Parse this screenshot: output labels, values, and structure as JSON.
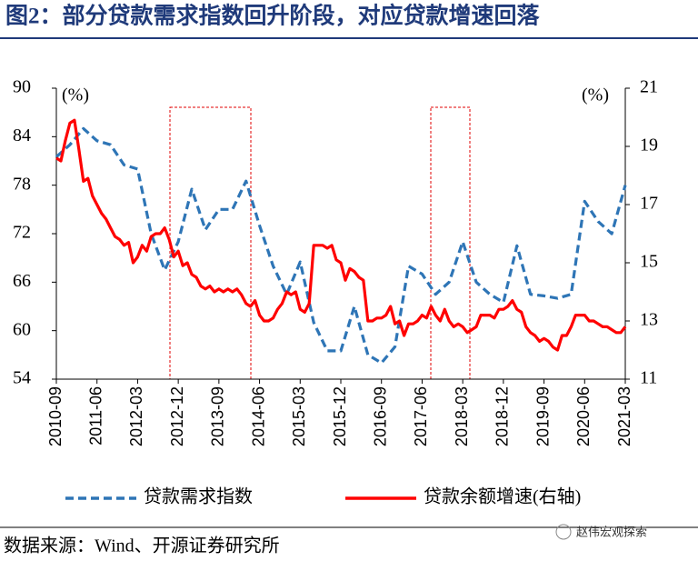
{
  "chart_data": {
    "type": "line",
    "title": "图2：部分贷款需求指数回升阶段，对应贷款增速回落",
    "y_label": "(%)",
    "y2_label": "(%)",
    "source": "数据来源：Wind、开源证券研究所",
    "watermark": "赵伟宏观探索",
    "x": [
      "2010-09",
      "2010-10",
      "2010-11",
      "2010-12",
      "2011-01",
      "2011-02",
      "2011-03",
      "2011-04",
      "2011-05",
      "2011-06",
      "2011-07",
      "2011-08",
      "2011-09",
      "2011-10",
      "2011-11",
      "2011-12",
      "2012-01",
      "2012-02",
      "2012-03",
      "2012-04",
      "2012-05",
      "2012-06",
      "2012-07",
      "2012-08",
      "2012-09",
      "2012-10",
      "2012-11",
      "2012-12",
      "2013-01",
      "2013-02",
      "2013-03",
      "2013-04",
      "2013-05",
      "2013-06",
      "2013-07",
      "2013-08",
      "2013-09",
      "2013-10",
      "2013-11",
      "2013-12",
      "2014-01",
      "2014-02",
      "2014-03",
      "2014-04",
      "2014-05",
      "2014-06",
      "2014-07",
      "2014-08",
      "2014-09",
      "2014-10",
      "2014-11",
      "2014-12",
      "2015-01",
      "2015-02",
      "2015-03",
      "2015-04",
      "2015-05",
      "2015-06",
      "2015-07",
      "2015-08",
      "2015-09",
      "2015-10",
      "2015-11",
      "2015-12",
      "2016-01",
      "2016-02",
      "2016-03",
      "2016-04",
      "2016-05",
      "2016-06",
      "2016-07",
      "2016-08",
      "2016-09",
      "2016-10",
      "2016-11",
      "2016-12",
      "2017-01",
      "2017-02",
      "2017-03",
      "2017-04",
      "2017-05",
      "2017-06",
      "2017-07",
      "2017-08",
      "2017-09",
      "2017-10",
      "2017-11",
      "2017-12",
      "2018-01",
      "2018-02",
      "2018-03",
      "2018-04",
      "2018-05",
      "2018-06",
      "2018-07",
      "2018-08",
      "2018-09",
      "2018-10",
      "2018-11",
      "2018-12",
      "2019-01",
      "2019-02",
      "2019-03",
      "2019-04",
      "2019-05",
      "2019-06",
      "2019-07",
      "2019-08",
      "2019-09",
      "2019-10",
      "2019-11",
      "2019-12",
      "2020-01",
      "2020-02",
      "2020-03",
      "2020-04",
      "2020-05",
      "2020-06",
      "2020-07",
      "2020-08",
      "2020-09",
      "2020-10",
      "2020-11",
      "2020-12",
      "2021-01",
      "2021-02",
      "2021-03"
    ],
    "xticks": [
      "2010-09",
      "2011-06",
      "2012-03",
      "2012-12",
      "2013-09",
      "2014-06",
      "2015-03",
      "2015-12",
      "2016-09",
      "2017-06",
      "2018-03",
      "2018-12",
      "2019-09",
      "2020-06",
      "2021-03"
    ],
    "ylim": [
      54,
      90
    ],
    "yticks": [
      54,
      60,
      66,
      72,
      78,
      84,
      90
    ],
    "y2lim": [
      11,
      21
    ],
    "y2ticks": [
      11,
      13,
      15,
      17,
      19,
      21
    ],
    "series": [
      {
        "name": "贷款需求指数",
        "color": "#2e75b6",
        "dashed": true,
        "x": [
          "2010-09",
          "2010-12",
          "2011-03",
          "2011-06",
          "2011-09",
          "2011-12",
          "2012-03",
          "2012-06",
          "2012-09",
          "2012-12",
          "2013-03",
          "2013-06",
          "2013-09",
          "2013-12",
          "2014-03",
          "2014-06",
          "2014-09",
          "2014-12",
          "2015-03",
          "2015-06",
          "2015-09",
          "2015-12",
          "2016-03",
          "2016-06",
          "2016-09",
          "2016-12",
          "2017-03",
          "2017-06",
          "2017-09",
          "2017-12",
          "2018-03",
          "2018-06",
          "2018-09",
          "2018-12",
          "2019-03",
          "2019-06",
          "2019-09",
          "2019-12",
          "2020-03",
          "2020-06",
          "2020-09",
          "2020-12",
          "2021-03"
        ],
        "values": [
          81.5,
          83,
          85,
          83.5,
          83,
          80.5,
          80,
          72,
          67.5,
          71,
          77.5,
          72.5,
          75,
          75,
          78.5,
          73,
          68,
          64.5,
          68.5,
          61,
          57.5,
          57.5,
          63,
          57,
          56,
          58,
          68,
          67,
          64.5,
          66,
          71,
          66,
          64.5,
          63.5,
          70.5,
          64.5,
          64.3,
          64,
          64.5,
          76,
          73.5,
          72,
          78
        ]
      },
      {
        "name": "贷款余额增速(右轴)",
        "color": "#ff0000",
        "axis": "y2",
        "values": [
          18.6,
          18.5,
          19.2,
          19.8,
          19.9,
          18.9,
          17.8,
          17.9,
          17.3,
          17.0,
          16.7,
          16.5,
          16.2,
          15.9,
          15.8,
          15.6,
          15.7,
          15.0,
          15.2,
          15.6,
          15.4,
          15.9,
          16.0,
          16.0,
          16.2,
          15.8,
          15.2,
          15.4,
          14.9,
          15.0,
          14.6,
          14.5,
          14.2,
          14.1,
          14.2,
          14.0,
          14.1,
          14.0,
          14.1,
          14.0,
          14.1,
          13.9,
          13.6,
          13.5,
          13.7,
          13.2,
          13.0,
          13.0,
          13.1,
          13.4,
          13.6,
          14.0,
          13.9,
          14.0,
          13.4,
          13.3,
          13.6,
          15.6,
          15.6,
          15.6,
          15.5,
          15.6,
          15.1,
          15.0,
          14.4,
          14.8,
          14.7,
          14.5,
          14.4,
          13.0,
          13.0,
          13.1,
          13.1,
          13.2,
          13.5,
          12.9,
          13.0,
          12.5,
          12.9,
          12.9,
          13.0,
          13.2,
          13.1,
          13.5,
          13.2,
          13.0,
          13.4,
          13.0,
          12.8,
          12.9,
          12.8,
          12.6,
          12.7,
          12.8,
          13.2,
          13.2,
          13.2,
          13.1,
          13.4,
          13.4,
          13.5,
          13.7,
          13.4,
          13.3,
          12.8,
          12.6,
          12.5,
          12.3,
          12.4,
          12.3,
          12.1,
          12.0,
          12.5,
          12.5,
          12.8,
          13.2,
          13.2,
          13.2,
          13.0,
          13.0,
          12.9,
          12.8,
          12.8,
          12.7,
          12.6,
          12.6,
          12.8
        ]
      }
    ]
  }
}
